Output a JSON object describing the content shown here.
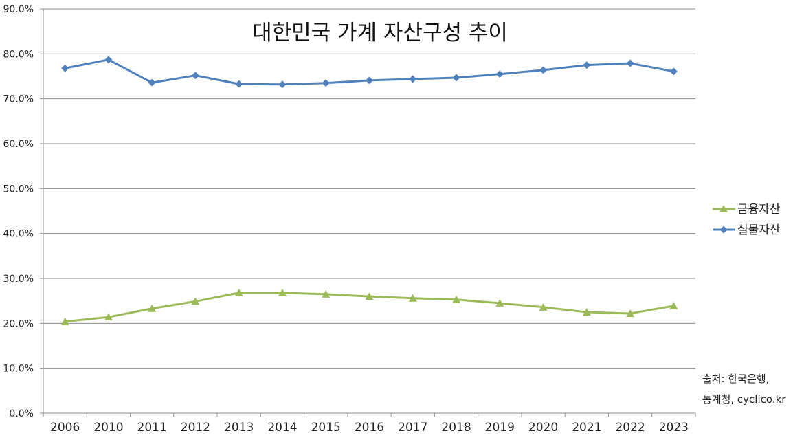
{
  "chart_data": {
    "type": "line",
    "title": "대한민국 가계 자산구성 추이",
    "xlabel": "",
    "ylabel": "",
    "ylim": [
      0,
      90
    ],
    "yticks": [
      "0.0%",
      "10.0%",
      "20.0%",
      "30.0%",
      "40.0%",
      "50.0%",
      "60.0%",
      "70.0%",
      "80.0%",
      "90.0%"
    ],
    "grid": true,
    "legend_position": "right",
    "categories": [
      "2006",
      "2010",
      "2011",
      "2012",
      "2013",
      "2014",
      "2015",
      "2016",
      "2017",
      "2018",
      "2019",
      "2020",
      "2021",
      "2022",
      "2023"
    ],
    "series": [
      {
        "name": "금융자산",
        "color": "#9BBB59",
        "marker": "triangle",
        "values": [
          20.4,
          21.4,
          23.3,
          24.9,
          26.8,
          26.8,
          26.5,
          26.0,
          25.6,
          25.3,
          24.5,
          23.6,
          22.5,
          22.2,
          23.9
        ]
      },
      {
        "name": "실물자산",
        "color": "#4F81BD",
        "marker": "diamond",
        "values": [
          76.8,
          78.7,
          73.6,
          75.2,
          73.3,
          73.2,
          73.5,
          74.1,
          74.4,
          74.7,
          75.5,
          76.4,
          77.5,
          77.9,
          76.1
        ]
      }
    ],
    "source_line1": "출처: 한국은행,",
    "source_line2": "통계청, cyclico.kr"
  }
}
